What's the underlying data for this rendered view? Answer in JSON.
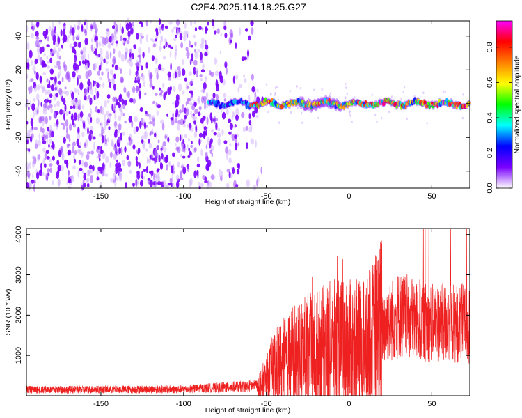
{
  "title": "C2E4.2025.114.18.25.G27",
  "chart_data": [
    {
      "type": "heatmap",
      "xlabel": "Height of straight line (km)",
      "ylabel": "Frequency (Hz)",
      "xlim": [
        -195,
        73
      ],
      "ylim": [
        -50,
        49
      ],
      "xticks": [
        -150,
        -100,
        -50,
        0,
        50
      ],
      "yticks": [
        -40,
        -20,
        0,
        20,
        40
      ],
      "colorbar": {
        "label": "Normalized spectral amplitude",
        "range": [
          0,
          0.95
        ],
        "ticks": [
          0.0,
          0.2,
          0.4,
          0.6,
          0.8
        ],
        "colormap": [
          "#ffffff",
          "#7a00ff",
          "#0000ff",
          "#00ffff",
          "#00ff00",
          "#ffff00",
          "#ff8000",
          "#ff0000",
          "#ff00ff"
        ]
      },
      "features": {
        "noise_region_x": [
          -195,
          -52
        ],
        "noise_amplitude": 0.12,
        "signal_ridge_start_x": -85,
        "signal_ridge_frequency": 0,
        "signal_peak_amplitude": 0.9
      }
    },
    {
      "type": "line",
      "xlabel": "Height of straight line (km)",
      "ylabel": "SNR (10 * v/v)",
      "xlim": [
        -195,
        73
      ],
      "ylim": [
        0,
        4150
      ],
      "xticks": [
        -150,
        -100,
        -50,
        0,
        50
      ],
      "yticks": [
        1000,
        2000,
        3000,
        4000
      ],
      "color": "#ee2020",
      "profile": {
        "x": [
          -195,
          -100,
          -80,
          -55,
          -50,
          -45,
          -30,
          -20,
          -10,
          0,
          10,
          20,
          30,
          40,
          50,
          60,
          73
        ],
        "y": [
          150,
          160,
          200,
          250,
          400,
          700,
          1000,
          1100,
          1200,
          1200,
          1200,
          1700,
          2000,
          1900,
          1800,
          1800,
          1800
        ]
      }
    }
  ]
}
